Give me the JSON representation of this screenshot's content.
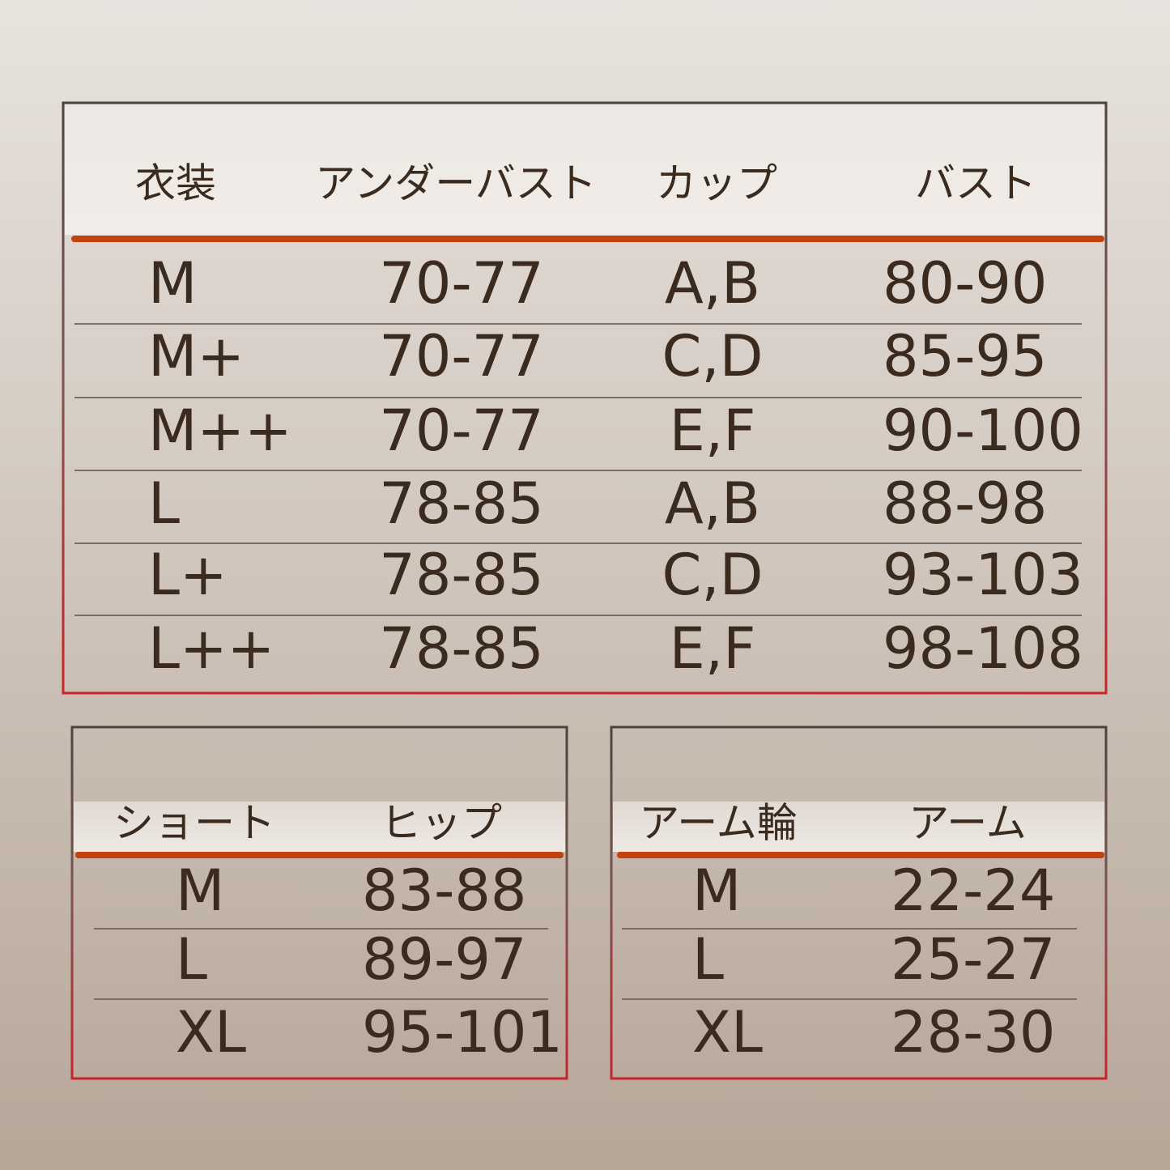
{
  "tables": [
    {
      "headers": [
        "衣装",
        "アンダーバスト",
        "カップ",
        "バスト"
      ],
      "rows": [
        [
          "M",
          "70-77",
          "A,B",
          "80-90"
        ],
        [
          "M+",
          "70-77",
          "C,D",
          "85-95"
        ],
        [
          "M++",
          "70-77",
          "E,F",
          "90-100"
        ],
        [
          "L",
          "78-85",
          "A,B",
          "88-98"
        ],
        [
          "L+",
          "78-85",
          "C,D",
          "93-103"
        ],
        [
          "L++",
          "78-85",
          "E,F",
          "98-108"
        ]
      ]
    },
    {
      "headers": [
        "ショート",
        "ヒップ"
      ],
      "rows": [
        [
          "M",
          "83-88"
        ],
        [
          "L",
          "89-97"
        ],
        [
          "XL",
          "95-101"
        ]
      ]
    },
    {
      "headers": [
        "アーム輪",
        "アーム"
      ],
      "rows": [
        [
          "M",
          "22-24"
        ],
        [
          "L",
          "25-27"
        ],
        [
          "XL",
          "28-30"
        ]
      ]
    }
  ]
}
